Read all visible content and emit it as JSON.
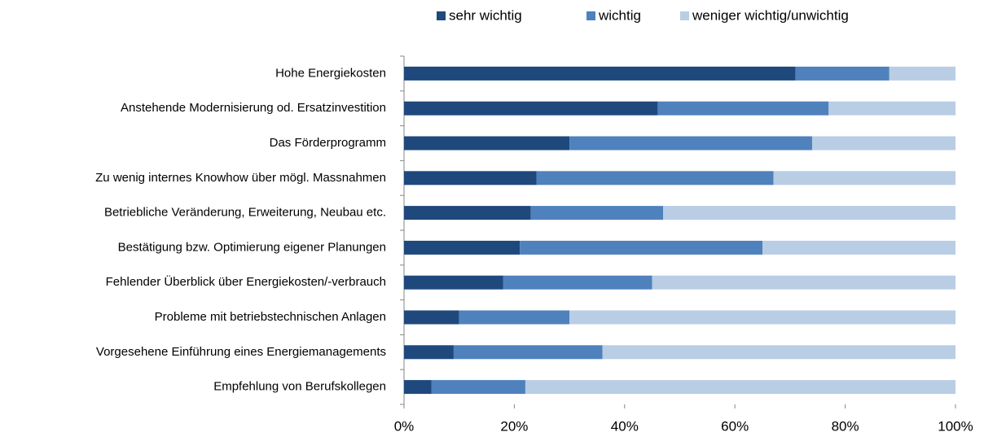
{
  "chart_data": {
    "type": "stacked-bar-horizontal",
    "categories": [
      "Hohe Energiekosten",
      "Anstehende Modernisierung od. Ersatzinvestition",
      "Das Förderprogramm",
      "Zu wenig internes Knowhow über mögl. Massnahmen",
      "Betriebliche Veränderung, Erweiterung, Neubau etc.",
      "Bestätigung bzw. Optimierung eigener Planungen",
      "Fehlender Überblick über Energiekosten/-verbrauch",
      "Probleme  mit betriebstechnischen Anlagen",
      "Vorgesehene Einführung eines Energiemanagements",
      "Empfehlung von Berufskollegen"
    ],
    "series": [
      {
        "name": "sehr wichtig",
        "color": "#1f497d",
        "values": [
          71,
          46,
          30,
          24,
          23,
          21,
          18,
          10,
          9,
          5
        ]
      },
      {
        "name": "wichtig",
        "color": "#4f81bd",
        "values": [
          17,
          31,
          44,
          43,
          24,
          44,
          27,
          20,
          27,
          17
        ]
      },
      {
        "name": "weniger wichtig/unwichtig",
        "color": "#b9cde5",
        "values": [
          12,
          23,
          26,
          33,
          53,
          35,
          55,
          70,
          64,
          78
        ]
      }
    ],
    "xlim": [
      0,
      100
    ],
    "xticks": [
      {
        "value": 0,
        "label": "0%"
      },
      {
        "value": 20,
        "label": "20%"
      },
      {
        "value": 40,
        "label": "40%"
      },
      {
        "value": 60,
        "label": "60%"
      },
      {
        "value": 80,
        "label": "80%"
      },
      {
        "value": 100,
        "label": "100%"
      }
    ],
    "legend": "top"
  }
}
